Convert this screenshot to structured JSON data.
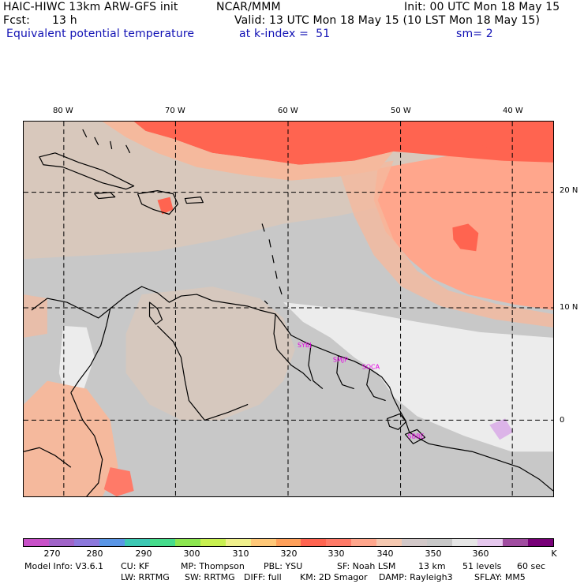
{
  "header": {
    "model": "HAIC-HIWC 13km ARW-GFS init",
    "center": "NCAR/MMM",
    "init": "Init: 00 UTC Mon 18 May 15",
    "fcst_label": "Fcst:",
    "fcst_value": "13 h",
    "valid": "Valid: 13 UTC Mon 18 May 15 (10 LST Mon 18 May 15)",
    "field": "Equivalent potential temperature",
    "level": "at k-index =  51",
    "smooth": "sm= 2"
  },
  "map": {
    "lon_labels": [
      "80 W",
      "70 W",
      "60 W",
      "50 W",
      "40 W"
    ],
    "lat_labels": [
      "20 N",
      "10 N",
      "0"
    ],
    "stations": [
      "SYBJ",
      "SMJP",
      "SOCA",
      "SBBE"
    ],
    "fill_colors": {
      "light": "#ececec",
      "gray": "#c8c8c8",
      "tan": "#d8c8bc",
      "peach": "#f5b99d",
      "salmon": "#ffa68c",
      "red": "#ff6450",
      "lavender": "#dcb4e8"
    },
    "outline_color": "#000000",
    "station_color": "#e600e6"
  },
  "colorbar": {
    "labels": [
      "270",
      "280",
      "290",
      "300",
      "310",
      "320",
      "330",
      "340",
      "350",
      "360"
    ],
    "unit": "K",
    "colors": [
      "#c850c8",
      "#a064c8",
      "#8c78dc",
      "#5a96e6",
      "#3cc8b4",
      "#46dc8c",
      "#8ce650",
      "#c8f050",
      "#f0f08c",
      "#ffc878",
      "#ffa05a",
      "#ff6450",
      "#ff7a68",
      "#ffa68c",
      "#f5c8b0",
      "#d2c8c8",
      "#c8c8c8",
      "#e6e6e6",
      "#e6c8ee",
      "#a04ca0",
      "#780078"
    ]
  },
  "footer": {
    "line1": [
      "Model Info: V3.6.1",
      "CU: KF",
      "MP: Thompson",
      "PBL: YSU",
      "SF: Noah LSM",
      "13 km",
      "51 levels",
      "60 sec"
    ],
    "line2": [
      "LW: RRTMG",
      "SW: RRTMG",
      "DIFF: full",
      "KM: 2D Smagor",
      "DAMP: Rayleigh3",
      "SFLAY: MM5"
    ]
  }
}
